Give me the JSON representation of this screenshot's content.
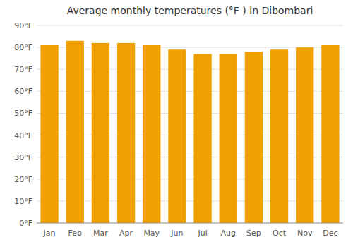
{
  "chart_data": {
    "type": "bar",
    "title": "Average monthly temperatures (°F ) in Dibombari",
    "categories": [
      "Jan",
      "Feb",
      "Mar",
      "Apr",
      "May",
      "Jun",
      "Jul",
      "Aug",
      "Sep",
      "Oct",
      "Nov",
      "Dec"
    ],
    "values": [
      81,
      83,
      82,
      82,
      81,
      79,
      77,
      77,
      78,
      79,
      80,
      81
    ],
    "color": "#F0A000",
    "ylim": [
      0,
      90
    ],
    "yticks": [
      {
        "value": 0,
        "label": "0°F"
      },
      {
        "value": 10,
        "label": "10°F"
      },
      {
        "value": 20,
        "label": "20°F"
      },
      {
        "value": 30,
        "label": "30°F"
      },
      {
        "value": 40,
        "label": "40°F"
      },
      {
        "value": 50,
        "label": "50°F"
      },
      {
        "value": 60,
        "label": "60°F"
      },
      {
        "value": 70,
        "label": "70°F"
      },
      {
        "value": 80,
        "label": "80°F"
      },
      {
        "value": 90,
        "label": "90°F"
      }
    ],
    "grid": true
  }
}
